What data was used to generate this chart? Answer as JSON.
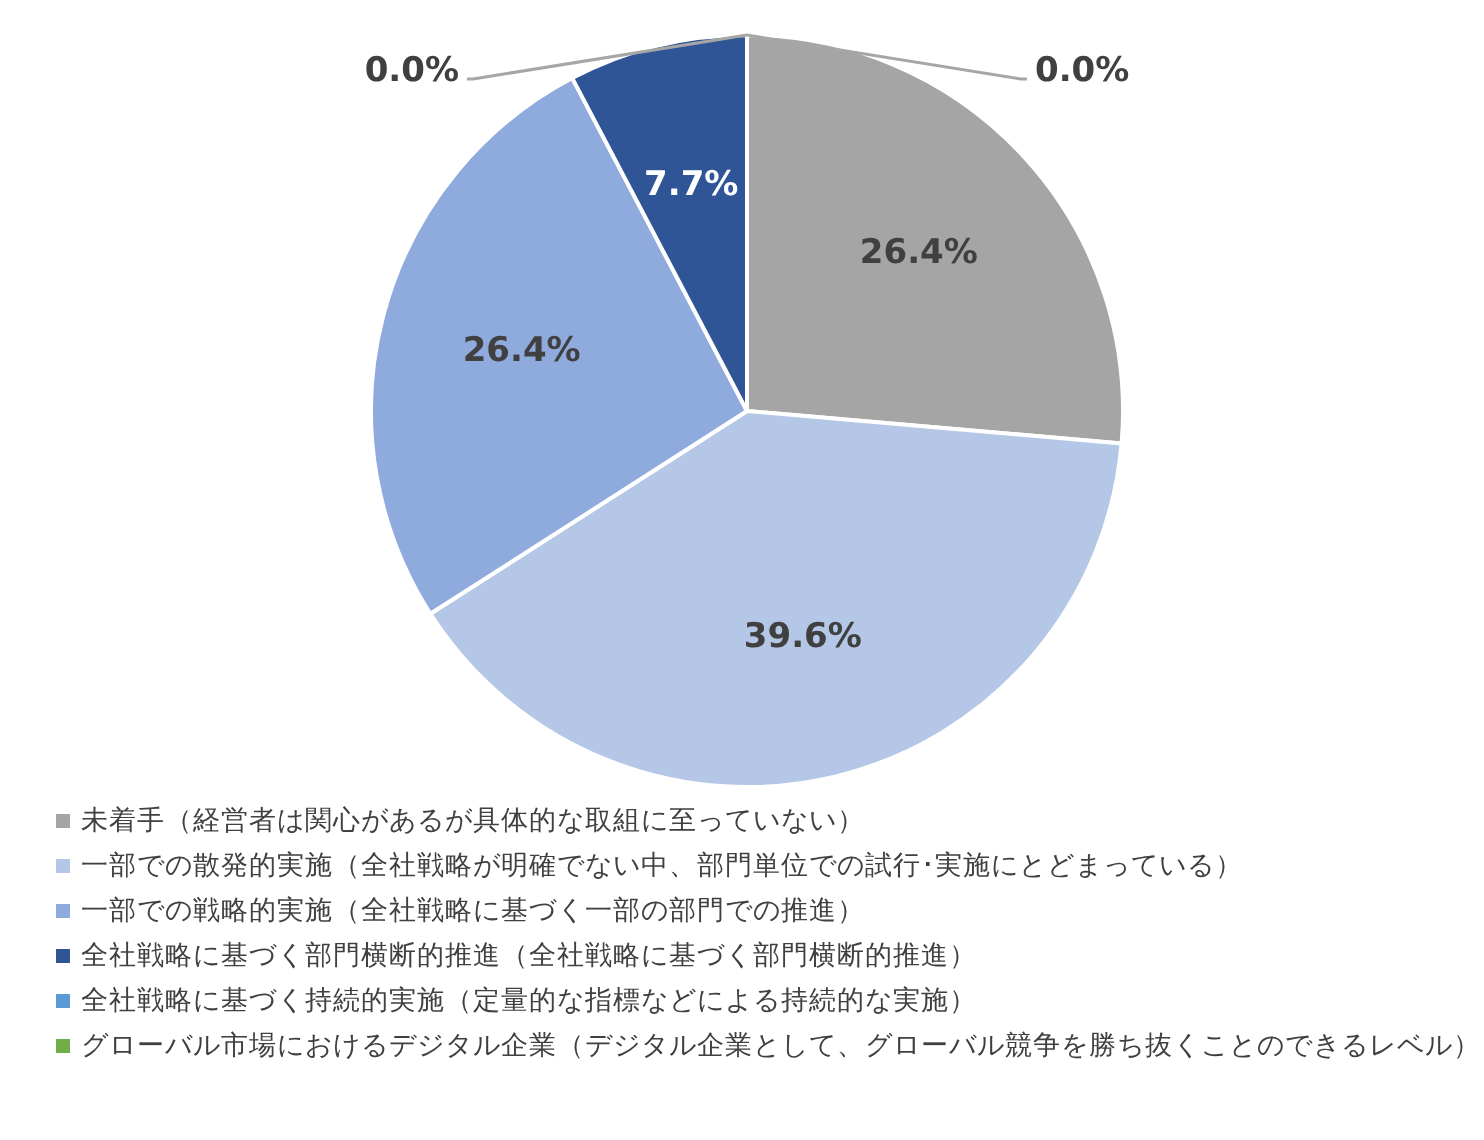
{
  "chart_data": {
    "type": "pie",
    "categories": [
      "未着手（経営者は関心があるが具体的な取組に至っていない）",
      "一部での散発的実施（全社戦略が明確でない中、部門単位での試行･実施にとどまっている）",
      "一部での戦略的実施（全社戦略に基づく一部の部門での推進）",
      "全社戦略に基づく部門横断的推進（全社戦略に基づく部門横断的推進）",
      "全社戦略に基づく持続的実施（定量的な指標などによる持続的な実施）",
      "グローバル市場におけるデジタル企業（デジタル企業として、グローバル競争を勝ち抜くことのできるレベル）"
    ],
    "values": [
      26.4,
      39.6,
      26.4,
      7.7,
      0.0,
      0.0
    ],
    "value_labels": [
      "26.4%",
      "39.6%",
      "26.4%",
      "7.7%",
      "0.0%",
      "0.0%"
    ],
    "colors": [
      "#a5a5a5",
      "#b4c7e7",
      "#8faadc",
      "#2f5597",
      "#5b9bd5",
      "#70ad47"
    ],
    "legend": "bottom"
  }
}
